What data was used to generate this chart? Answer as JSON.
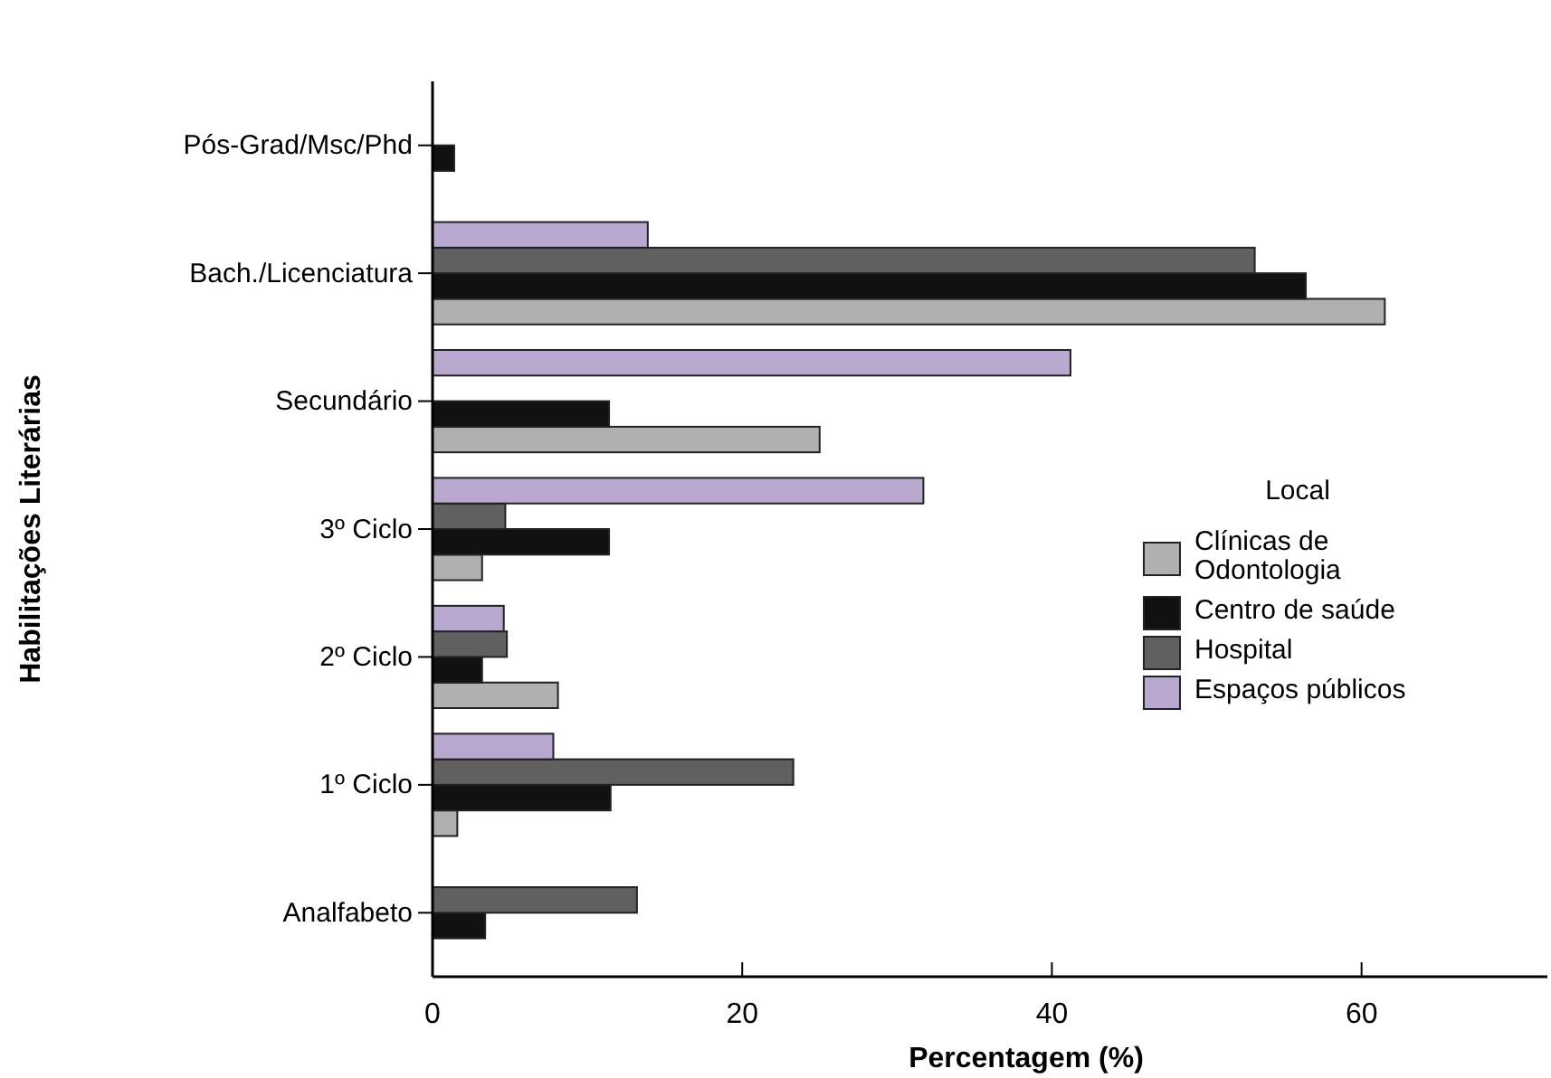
{
  "chart_data": {
    "type": "bar",
    "orientation": "horizontal",
    "xlabel": "Percentagem (%)",
    "ylabel": "Habilitações Literárias",
    "legend_title": "Local",
    "legend": "right",
    "categories": [
      "Pós-Grad/Msc/Phd",
      "Bach./Licenciatura",
      "Secundário",
      "3º Ciclo",
      "2º Ciclo",
      "1º Ciclo",
      "Analfabeto"
    ],
    "series": [
      {
        "name": "Clínicas de Odontologia",
        "color": "#b0b0b0",
        "values": [
          0,
          61.5,
          25.0,
          3.2,
          8.1,
          1.6,
          0
        ]
      },
      {
        "name": "Centro de saúde",
        "color": "#111111",
        "values": [
          1.4,
          56.4,
          11.4,
          11.4,
          3.2,
          11.5,
          3.4
        ]
      },
      {
        "name": "Hospital",
        "color": "#606060",
        "values": [
          0,
          53.1,
          0,
          4.7,
          4.8,
          23.3,
          13.2
        ]
      },
      {
        "name": "Espaços públicos",
        "color": "#b8a8d0",
        "values": [
          0,
          13.9,
          41.2,
          31.7,
          4.6,
          7.8,
          0
        ]
      }
    ],
    "xlim": [
      0,
      72
    ],
    "xticks": [
      0,
      20,
      40,
      60
    ],
    "grid": false
  }
}
